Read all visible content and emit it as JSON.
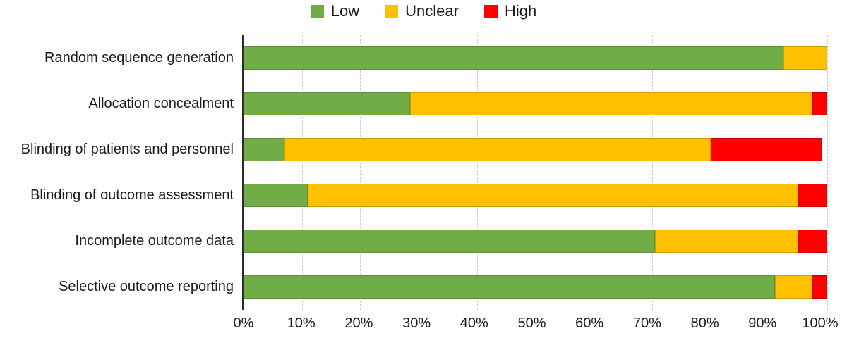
{
  "legend": {
    "items": [
      {
        "label": "Low",
        "color": "#70AD47"
      },
      {
        "label": "Unclear",
        "color": "#FFC000"
      },
      {
        "label": "High",
        "color": "#FF0000"
      }
    ]
  },
  "chart_data": {
    "type": "bar",
    "orientation": "horizontal",
    "stacked": true,
    "title": "",
    "xlabel": "",
    "ylabel": "",
    "xlim": [
      0,
      100
    ],
    "grid": "vertical-dashed-every-10-percent",
    "legend_position": "top-center",
    "categories": [
      "Random sequence generation",
      "Allocation concealment",
      "Blinding of patients and personnel",
      "Blinding of outcome assessment",
      "Incomplete outcome data",
      "Selective outcome reporting"
    ],
    "series": [
      {
        "name": "Low",
        "color": "#70AD47",
        "values": [
          92.5,
          28.5,
          7.0,
          11.0,
          70.5,
          91.0
        ]
      },
      {
        "name": "Unclear",
        "color": "#FFC000",
        "values": [
          7.5,
          69.0,
          73.0,
          84.0,
          24.5,
          6.5
        ]
      },
      {
        "name": "High",
        "color": "#FF0000",
        "values": [
          0.0,
          2.5,
          19.0,
          5.0,
          5.0,
          2.5
        ]
      }
    ],
    "x_tick_labels": [
      "0%",
      "10%",
      "20%",
      "30%",
      "40%",
      "50%",
      "60%",
      "70%",
      "80%",
      "90%",
      "100%"
    ]
  }
}
